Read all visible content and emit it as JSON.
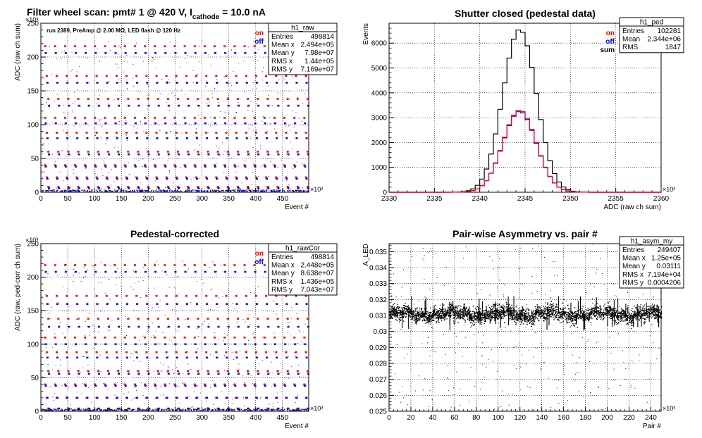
{
  "header": {
    "main_title": "Filter wheel scan: pmt#   1 @   420 V, I",
    "main_title_sub": "cathode",
    "main_title_end": " = 10.0 nA",
    "run_info": "run 2389, PreAmp @ 2.00 MΩ, LED flash @  120 Hz"
  },
  "legend_labels": {
    "on": "on",
    "off": "off",
    "sum": "sum"
  },
  "colors": {
    "on": "#ff0000",
    "off": "#0000ff",
    "sum": "#000000"
  },
  "chart_data": [
    {
      "id": "raw",
      "type": "scatter",
      "title": "",
      "xlabel": "Event #",
      "ylabel": "ADC (raw ch sum)",
      "x_exponent": "×10³",
      "y_exponent": "×10³",
      "xlim": [
        0,
        498.8
      ],
      "ylim": [
        0,
        250
      ],
      "xticks": [
        0,
        50,
        100,
        150,
        200,
        250,
        300,
        350,
        400,
        450
      ],
      "yticks": [
        0,
        50,
        100,
        150,
        200,
        250
      ],
      "grid": true,
      "legend": [
        "on",
        "off"
      ],
      "stats": {
        "name": "h1_raw",
        "rows": [
          [
            "Entries",
            "498814"
          ],
          [
            "Mean x",
            "2.494e+05"
          ],
          [
            "Mean y",
            "7.98e+07"
          ],
          [
            "RMS x",
            "1.44e+05"
          ],
          [
            "RMS y",
            "7.169e+07"
          ]
        ]
      },
      "level_rows": [
        {
          "on": 216,
          "off": 206
        },
        {
          "on": 172,
          "off": 162
        },
        {
          "on": 138,
          "off": 128
        },
        {
          "on": 110,
          "off": 102
        },
        {
          "on": 88,
          "off": 80
        },
        {
          "on": 60,
          "off": 56
        },
        {
          "on": 40,
          "off": 38
        },
        {
          "on": 22,
          "off": 20
        },
        {
          "on": 8,
          "off": 6
        }
      ]
    },
    {
      "id": "ped",
      "type": "line",
      "title": "Shutter closed (pedestal data)",
      "xlabel": "ADC (raw ch sum)",
      "ylabel": "Events",
      "x_exponent": "×10³",
      "xlim": [
        2330,
        2360
      ],
      "ylim": [
        0,
        6800
      ],
      "xticks": [
        2330,
        2335,
        2340,
        2345,
        2350,
        2355,
        2360
      ],
      "yticks": [
        0,
        1000,
        2000,
        3000,
        4000,
        5000,
        6000
      ],
      "grid": true,
      "legend": [
        "on",
        "off",
        "sum"
      ],
      "stats": {
        "name": "h1_ped",
        "rows": [
          [
            "Entries",
            "102281"
          ],
          [
            "Mean",
            "2.344e+06"
          ],
          [
            "RMS",
            "1847"
          ]
        ]
      },
      "series": [
        {
          "name": "sum",
          "mean": 2344.4,
          "sigma": 1.85,
          "peak": 6550
        },
        {
          "name": "on",
          "mean": 2344.4,
          "sigma": 1.85,
          "peak": 3300
        },
        {
          "name": "off",
          "mean": 2344.4,
          "sigma": 1.85,
          "peak": 3250
        }
      ]
    },
    {
      "id": "rawCor",
      "type": "scatter",
      "title": "Pedestal-corrected",
      "xlabel": "Event #",
      "ylabel": "ADC (raw, ped-corr ch sum)",
      "x_exponent": "×10³",
      "y_exponent": "×10³",
      "xlim": [
        0,
        498.8
      ],
      "ylim": [
        0,
        250
      ],
      "xticks": [
        0,
        50,
        100,
        150,
        200,
        250,
        300,
        350,
        400,
        450
      ],
      "yticks": [
        0,
        50,
        100,
        150,
        200,
        250
      ],
      "grid": true,
      "legend": [
        "on",
        "off"
      ],
      "stats": {
        "name": "h1_rawCor",
        "rows": [
          [
            "Entries",
            "498814"
          ],
          [
            "Mean x",
            "2.448e+05"
          ],
          [
            "Mean y",
            "8.638e+07"
          ],
          [
            "RMS x",
            "1.436e+05"
          ],
          [
            "RMS y",
            "7.043e+07"
          ]
        ]
      },
      "level_rows": [
        {
          "on": 218,
          "off": 208
        },
        {
          "on": 172,
          "off": 160
        },
        {
          "on": 138,
          "off": 126
        },
        {
          "on": 110,
          "off": 100
        },
        {
          "on": 88,
          "off": 80
        },
        {
          "on": 60,
          "off": 56
        },
        {
          "on": 40,
          "off": 38
        },
        {
          "on": 20,
          "off": 20
        },
        {
          "on": 4,
          "off": 4
        }
      ]
    },
    {
      "id": "asym",
      "type": "scatter",
      "title": "Pair-wise Asymmetry vs. pair #",
      "xlabel": "Pair #",
      "ylabel": "A_LED",
      "x_exponent": "×10³",
      "xlim": [
        0,
        249.4
      ],
      "ylim": [
        0.025,
        0.0355
      ],
      "xticks": [
        0,
        20,
        40,
        60,
        80,
        100,
        120,
        140,
        160,
        180,
        200,
        220,
        240
      ],
      "yticks": [
        0.025,
        0.026,
        0.027,
        0.028,
        0.029,
        0.03,
        0.031,
        0.032,
        0.033,
        0.034,
        0.035
      ],
      "ytick_labels": [
        "0.025",
        "0.026",
        "0.027",
        "0.028",
        "0.029",
        "0.03",
        "0.031",
        "0.032",
        "0.033",
        "0.034",
        "0.035"
      ],
      "grid": true,
      "stats": {
        "name": "h1_asym_my",
        "rows": [
          [
            "Entries",
            "249407"
          ],
          [
            "Mean x",
            "1.25e+05"
          ],
          [
            "Mean y",
            "0.03111"
          ],
          [
            "RMS x",
            "7.194e+04"
          ],
          [
            "RMS y",
            "0.0004206"
          ]
        ]
      },
      "band": {
        "center": 0.03111,
        "halfwidth": 0.0004
      }
    }
  ]
}
